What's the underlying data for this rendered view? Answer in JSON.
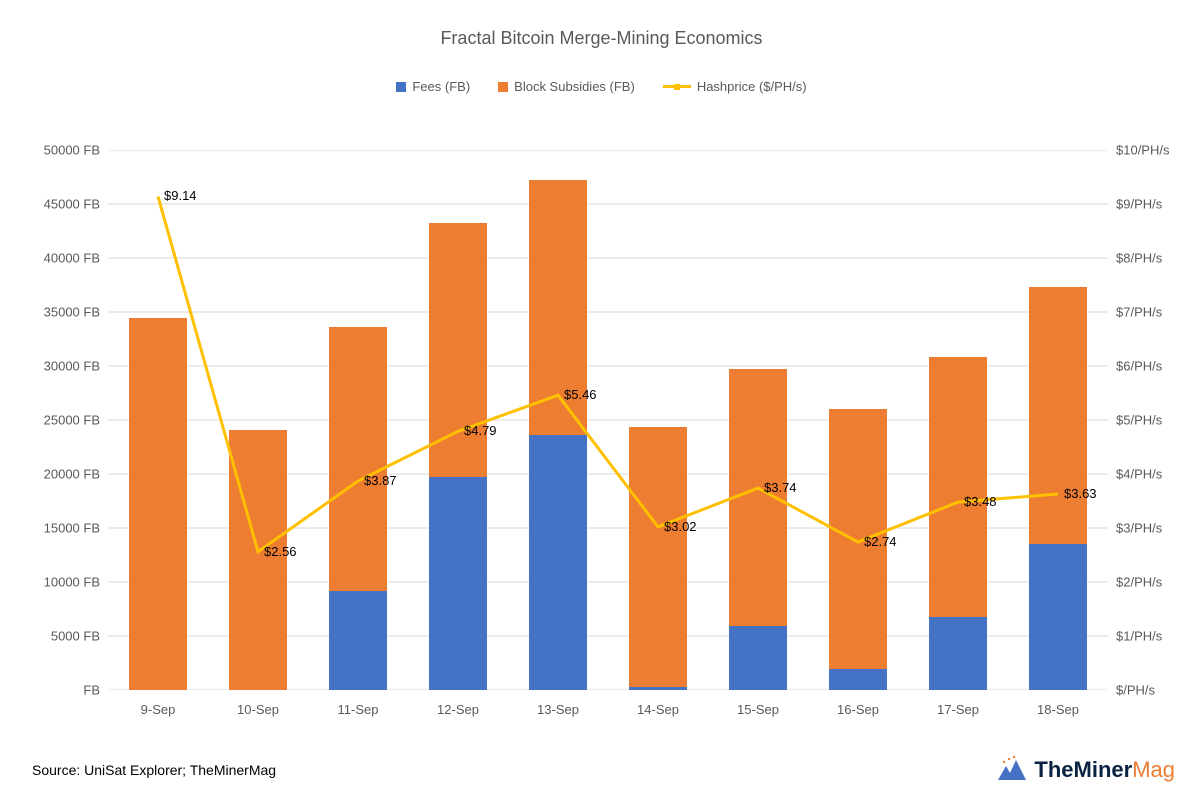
{
  "title": "Fractal Bitcoin Merge-Mining Economics",
  "legend": {
    "fees": "Fees (FB)",
    "subsidies": "Block Subsidies (FB)",
    "hashprice": "Hashprice ($/PH/s)"
  },
  "colors": {
    "fees": "#4472c4",
    "subsidies": "#ed7d31",
    "line": "#ffc000",
    "grid": "#d9d9d9",
    "background": "#ffffff",
    "axis_text": "#595959",
    "data_label_text": "#000000",
    "title_text": "#595959"
  },
  "chart": {
    "type": "stacked-bar-with-line",
    "left_axis": {
      "min": 0,
      "max": 50000,
      "step": 5000,
      "labels": [
        "FB",
        "5000 FB",
        "10000 FB",
        "15000 FB",
        "20000 FB",
        "25000 FB",
        "30000 FB",
        "35000 FB",
        "40000 FB",
        "45000 FB",
        "50000 FB"
      ]
    },
    "right_axis": {
      "min": 0,
      "max": 10,
      "step": 1,
      "labels": [
        "$/PH/s",
        "$1/PH/s",
        "$2/PH/s",
        "$3/PH/s",
        "$4/PH/s",
        "$5/PH/s",
        "$6/PH/s",
        "$7/PH/s",
        "$8/PH/s",
        "$9/PH/s",
        "$10/PH/s"
      ]
    },
    "categories": [
      "9-Sep",
      "10-Sep",
      "11-Sep",
      "12-Sep",
      "13-Sep",
      "14-Sep",
      "15-Sep",
      "16-Sep",
      "17-Sep",
      "18-Sep"
    ],
    "fees": [
      0,
      0,
      9200,
      19700,
      23600,
      300,
      5900,
      1900,
      6800,
      13500
    ],
    "subsidies": [
      34400,
      24100,
      24400,
      23500,
      23600,
      24100,
      23800,
      24100,
      24000,
      23800
    ],
    "hashprice": [
      9.14,
      2.56,
      3.87,
      4.79,
      5.46,
      3.02,
      3.74,
      2.74,
      3.48,
      3.63
    ],
    "hashprice_labels": [
      "$9.14",
      "$2.56",
      "$3.87",
      "$4.79",
      "$5.46",
      "$3.02",
      "$3.74",
      "$2.74",
      "$3.48",
      "$3.63"
    ],
    "bar_width_ratio": 0.58,
    "line_width": 3,
    "marker_size": 0
  },
  "source": "Source: UniSat Explorer; TheMinerMag",
  "brand": {
    "part1": "TheMiner",
    "part2": "Mag"
  }
}
